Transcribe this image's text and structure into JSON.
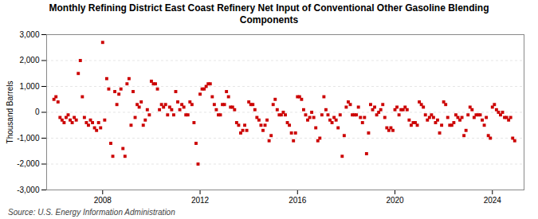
{
  "chart_data": {
    "type": "scatter",
    "title": "Monthly Refining District East Coast Refinery Net Input of Conventional Other Gasoline Blending\nComponents",
    "ylabel": "Thousand Barrels",
    "source": "Source: U.S. Energy Information Administration",
    "color": "#cc0000",
    "marker": "square",
    "grid": true,
    "xlim": [
      2005.7,
      2025.3
    ],
    "xticks": [
      2008,
      2012,
      2016,
      2020,
      2024
    ],
    "ylim": [
      -3000,
      3000
    ],
    "yticks": [
      {
        "value": -3000,
        "label": "-3,000"
      },
      {
        "value": -2000,
        "label": "-2,000"
      },
      {
        "value": -1000,
        "label": "-1,000"
      },
      0,
      {
        "value": 1000,
        "label": "1,000"
      },
      {
        "value": 2000,
        "label": "2,000"
      },
      {
        "value": 3000,
        "label": "3,000"
      }
    ],
    "x": [
      2006,
      2006.083333,
      2006.166667,
      2006.25,
      2006.333333,
      2006.416667,
      2006.5,
      2006.583333,
      2006.666667,
      2006.75,
      2006.833333,
      2006.916667,
      2007,
      2007.083333,
      2007.166667,
      2007.25,
      2007.333333,
      2007.416667,
      2007.5,
      2007.583333,
      2007.666667,
      2007.75,
      2007.833333,
      2007.916667,
      2008,
      2008.083333,
      2008.166667,
      2008.25,
      2008.333333,
      2008.416667,
      2008.5,
      2008.583333,
      2008.666667,
      2008.75,
      2008.833333,
      2008.916667,
      2009,
      2009.083333,
      2009.166667,
      2009.25,
      2009.333333,
      2009.416667,
      2009.5,
      2009.583333,
      2009.666667,
      2009.75,
      2009.833333,
      2009.916667,
      2010,
      2010.083333,
      2010.166667,
      2010.25,
      2010.333333,
      2010.416667,
      2010.5,
      2010.583333,
      2010.666667,
      2010.75,
      2010.833333,
      2010.916667,
      2011,
      2011.083333,
      2011.166667,
      2011.25,
      2011.333333,
      2011.416667,
      2011.5,
      2011.583333,
      2011.666667,
      2011.75,
      2011.833333,
      2011.916667,
      2012,
      2012.083333,
      2012.166667,
      2012.25,
      2012.333333,
      2012.416667,
      2012.5,
      2012.583333,
      2012.666667,
      2012.75,
      2012.833333,
      2012.916667,
      2013,
      2013.083333,
      2013.166667,
      2013.25,
      2013.333333,
      2013.416667,
      2013.5,
      2013.583333,
      2013.666667,
      2013.75,
      2013.833333,
      2013.916667,
      2014,
      2014.083333,
      2014.166667,
      2014.25,
      2014.333333,
      2014.416667,
      2014.5,
      2014.583333,
      2014.666667,
      2014.75,
      2014.833333,
      2014.916667,
      2015,
      2015.083333,
      2015.166667,
      2015.25,
      2015.333333,
      2015.416667,
      2015.5,
      2015.583333,
      2015.666667,
      2015.75,
      2015.833333,
      2015.916667,
      2016,
      2016.083333,
      2016.166667,
      2016.25,
      2016.333333,
      2016.416667,
      2016.5,
      2016.583333,
      2016.666667,
      2016.75,
      2016.833333,
      2016.916667,
      2017,
      2017.083333,
      2017.166667,
      2017.25,
      2017.333333,
      2017.416667,
      2017.5,
      2017.583333,
      2017.666667,
      2017.75,
      2017.833333,
      2017.916667,
      2018,
      2018.083333,
      2018.166667,
      2018.25,
      2018.333333,
      2018.416667,
      2018.5,
      2018.583333,
      2018.666667,
      2018.75,
      2018.833333,
      2018.916667,
      2019,
      2019.083333,
      2019.166667,
      2019.25,
      2019.333333,
      2019.416667,
      2019.5,
      2019.583333,
      2019.666667,
      2019.75,
      2019.833333,
      2019.916667,
      2020,
      2020.083333,
      2020.166667,
      2020.25,
      2020.333333,
      2020.416667,
      2020.5,
      2020.583333,
      2020.666667,
      2020.75,
      2020.833333,
      2020.916667,
      2021,
      2021.083333,
      2021.166667,
      2021.25,
      2021.333333,
      2021.416667,
      2021.5,
      2021.583333,
      2021.666667,
      2021.75,
      2021.833333,
      2021.916667,
      2022,
      2022.083333,
      2022.166667,
      2022.25,
      2022.333333,
      2022.416667,
      2022.5,
      2022.583333,
      2022.666667,
      2022.75,
      2022.833333,
      2022.916667,
      2023,
      2023.083333,
      2023.166667,
      2023.25,
      2023.333333,
      2023.416667,
      2023.5,
      2023.583333,
      2023.666667,
      2023.75,
      2023.833333,
      2023.916667,
      2024,
      2024.083333,
      2024.166667,
      2024.25,
      2024.333333,
      2024.416667,
      2024.5,
      2024.583333,
      2024.666667,
      2024.75,
      2024.833333,
      2024.916667
    ],
    "values": [
      500,
      600,
      400,
      -200,
      -300,
      -400,
      -200,
      -100,
      -300,
      -400,
      -200,
      -300,
      1500,
      2000,
      600,
      -200,
      -400,
      -500,
      -300,
      -400,
      -600,
      -700,
      -400,
      -600,
      2700,
      -300,
      1300,
      900,
      -1200,
      -1700,
      800,
      300,
      700,
      900,
      -1400,
      -1700,
      1100,
      1300,
      -500,
      800,
      -200,
      300,
      200,
      400,
      -500,
      -300,
      100,
      -100,
      1200,
      1100,
      1100,
      900,
      100,
      300,
      200,
      300,
      -100,
      200,
      100,
      -100,
      800,
      400,
      100,
      300,
      200,
      -100,
      -100,
      400,
      300,
      -400,
      -1200,
      -2000,
      700,
      900,
      900,
      1000,
      1100,
      1100,
      600,
      300,
      100,
      -100,
      -100,
      300,
      300,
      800,
      600,
      200,
      200,
      100,
      -400,
      -500,
      -800,
      -700,
      -500,
      -700,
      400,
      300,
      300,
      100,
      -200,
      -300,
      -500,
      -700,
      -500,
      -300,
      -1100,
      -900,
      300,
      500,
      100,
      -100,
      -100,
      0,
      -100,
      -400,
      -500,
      -800,
      -1100,
      -800,
      600,
      600,
      500,
      100,
      -100,
      -300,
      -200,
      0,
      -200,
      -600,
      -1100,
      -1000,
      -100,
      600,
      100,
      -100,
      -300,
      -400,
      -200,
      -300,
      -600,
      -100,
      -1700,
      -900,
      200,
      400,
      300,
      -100,
      -100,
      -100,
      200,
      -200,
      -400,
      -200,
      -1600,
      -800,
      300,
      100,
      200,
      -100,
      0,
      100,
      300,
      -200,
      -600,
      -700,
      -600,
      -700,
      100,
      200,
      -100,
      100,
      100,
      200,
      100,
      -300,
      -500,
      -400,
      -400,
      -500,
      400,
      300,
      200,
      -100,
      -300,
      -200,
      -100,
      -200,
      -400,
      -300,
      -800,
      -500,
      400,
      300,
      -200,
      -500,
      -500,
      -400,
      -100,
      -200,
      -300,
      -200,
      -900,
      -700,
      -100,
      200,
      100,
      -200,
      -100,
      -100,
      -100,
      -300,
      -500,
      -200,
      -900,
      -1000,
      200,
      300,
      100,
      0,
      -100,
      0,
      -200,
      -200,
      -300,
      -200,
      -1000,
      -1100
    ]
  }
}
